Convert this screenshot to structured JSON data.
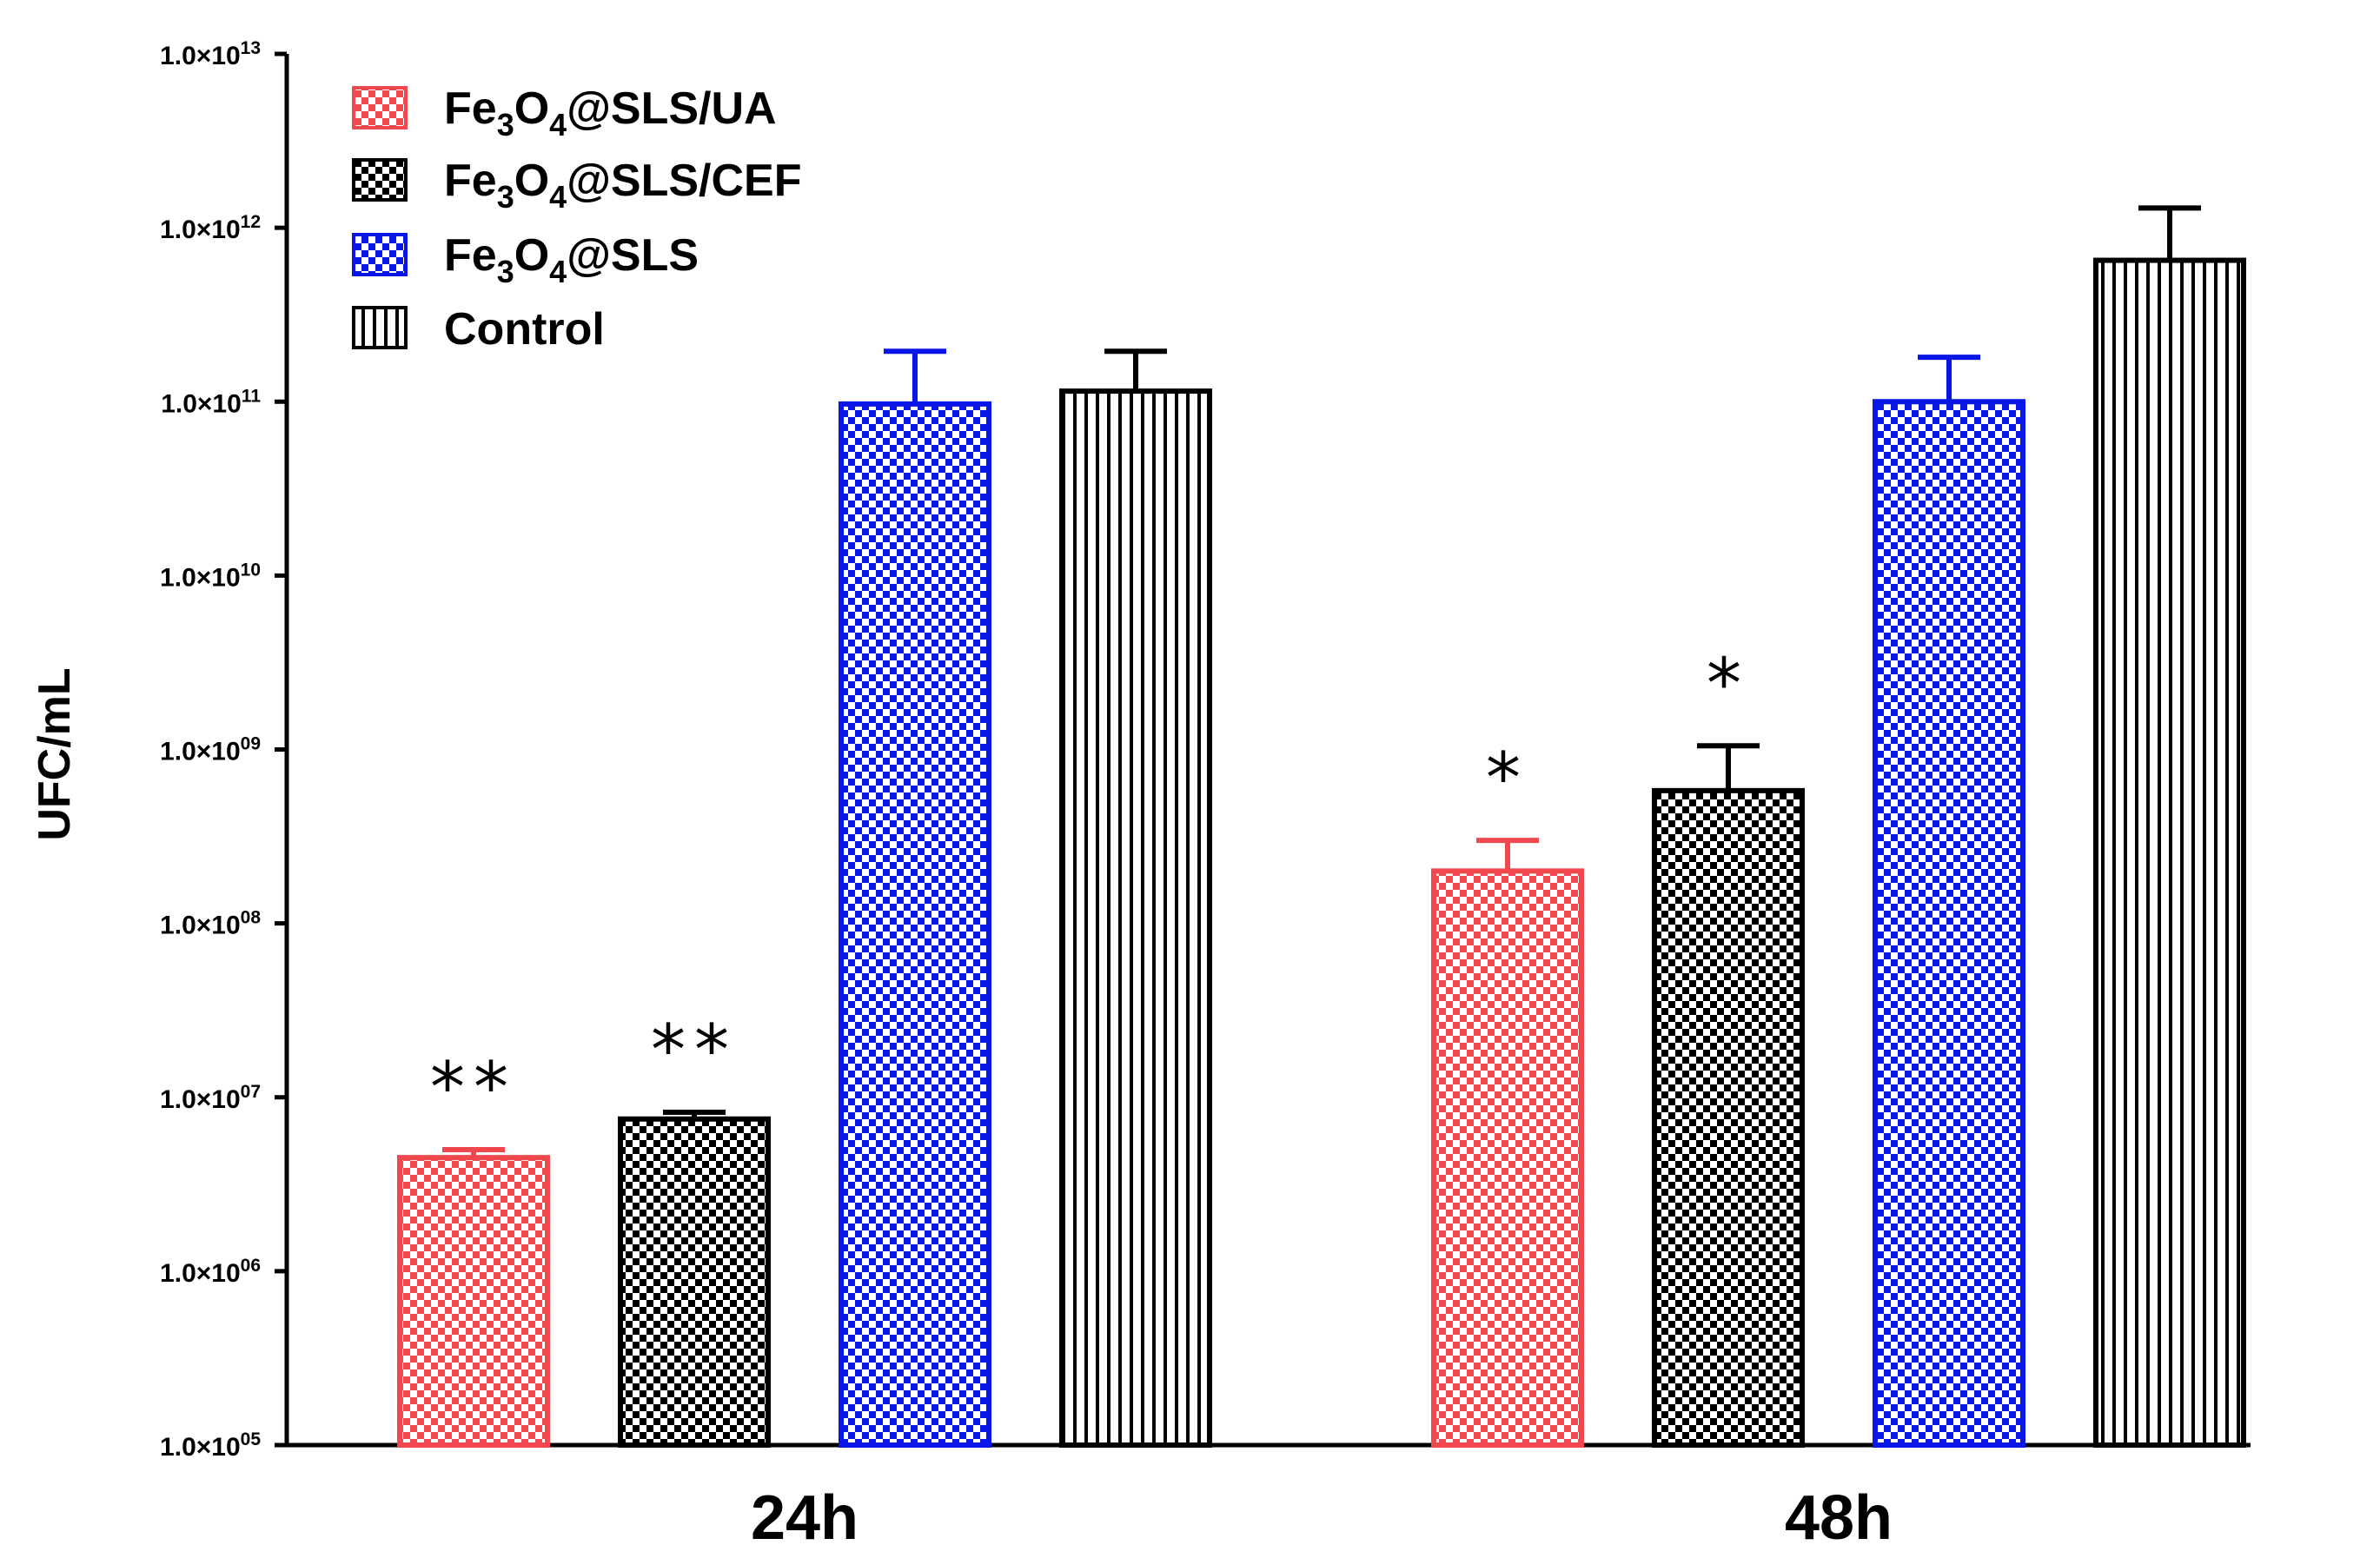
{
  "chart_data": {
    "type": "bar",
    "title": "",
    "xlabel": "",
    "ylabel": "UFC/mL",
    "yscale": "log",
    "ylim": [
      100000,
      10000000000000
    ],
    "categories": [
      "24h",
      "48h"
    ],
    "yticks": [
      {
        "value": 100000,
        "mant": "1.0×10",
        "exp": "05"
      },
      {
        "value": 1000000,
        "mant": "1.0×10",
        "exp": "06"
      },
      {
        "value": 10000000,
        "mant": "1.0×10",
        "exp": "07"
      },
      {
        "value": 100000000,
        "mant": "1.0×10",
        "exp": "08"
      },
      {
        "value": 1000000000,
        "mant": "1.0×10",
        "exp": "09"
      },
      {
        "value": 10000000000,
        "mant": "1.0×10",
        "exp": "10"
      },
      {
        "value": 100000000000,
        "mant": "1.0×10",
        "exp": "11"
      },
      {
        "value": 1000000000000,
        "mant": "1.0×10",
        "exp": "12"
      },
      {
        "value": 10000000000000,
        "mant": "1.0×10",
        "exp": "13"
      }
    ],
    "series": [
      {
        "name": "Fe3O4@SLS/UA",
        "legend": {
          "a": "Fe",
          "s1": "3",
          "b": "O",
          "s2": "4",
          "c": "@SLS/UA"
        },
        "color": "#f0484e",
        "pattern": "checker",
        "values": [
          4500000,
          200000000
        ],
        "error_upper": [
          5000000,
          300000000
        ],
        "significance": [
          "**",
          "*"
        ]
      },
      {
        "name": "Fe3O4@SLS/CEF",
        "legend": {
          "a": "Fe",
          "s1": "3",
          "b": "O",
          "s2": "4",
          "c": "@SLS/CEF"
        },
        "color": "#000000",
        "pattern": "checker",
        "values": [
          7500000,
          580000000
        ],
        "error_upper": [
          8200000,
          1050000000
        ],
        "significance": [
          "**",
          "*"
        ]
      },
      {
        "name": "Fe3O4@SLS",
        "legend": {
          "a": "Fe",
          "s1": "3",
          "b": "O",
          "s2": "4",
          "c": "@SLS"
        },
        "color": "#0a16e6",
        "pattern": "checker",
        "values": [
          97000000000,
          100000000000
        ],
        "error_upper": [
          195000000000,
          180000000000
        ],
        "significance": [
          "",
          ""
        ]
      },
      {
        "name": "Control",
        "legend": {
          "a": "Control",
          "s1": "",
          "b": "",
          "s2": "",
          "c": ""
        },
        "color": "#000000",
        "pattern": "vstripes",
        "values": [
          115000000000,
          650000000000
        ],
        "error_upper": [
          195000000000,
          1300000000000
        ],
        "significance": [
          "",
          ""
        ]
      }
    ],
    "legend_position": "top-left",
    "grid": false
  }
}
